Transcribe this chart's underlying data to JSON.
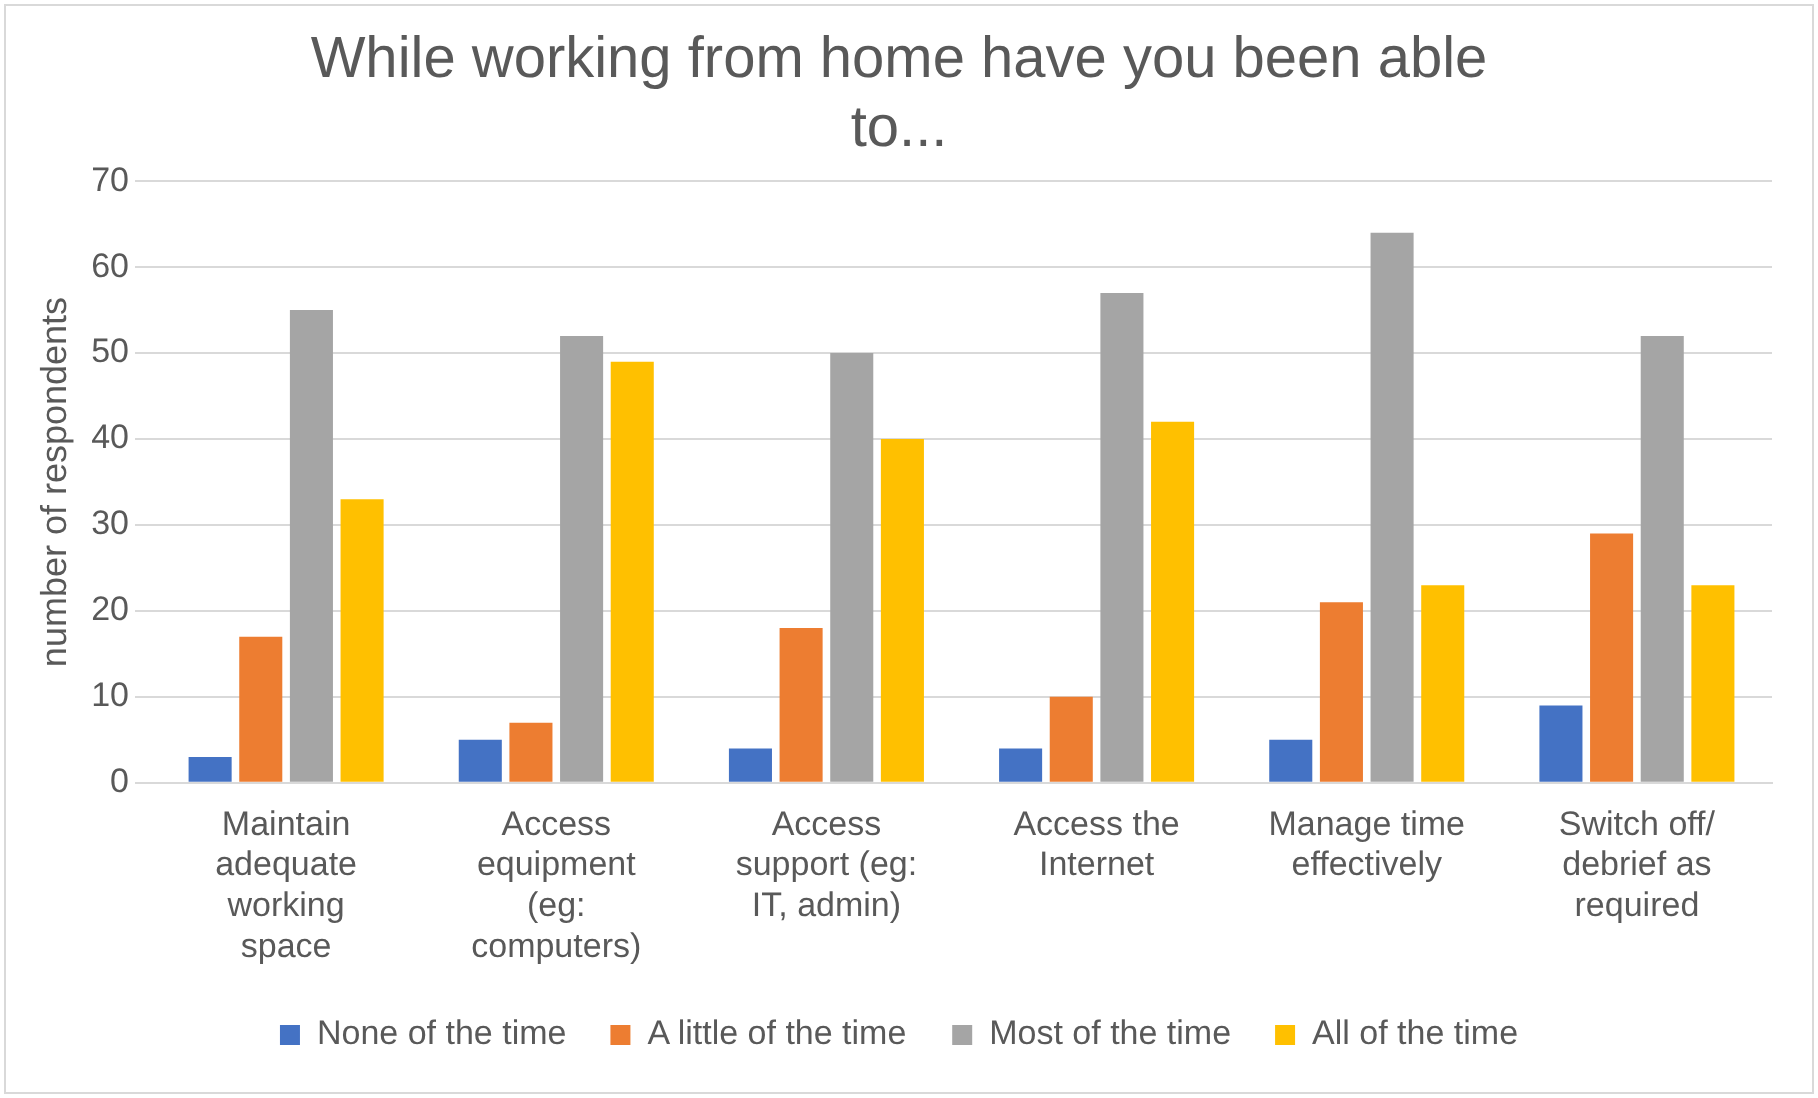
{
  "chart_data": {
    "type": "bar",
    "title": "While working from home have you been able to...",
    "ylabel": "number of respondents",
    "categories": [
      "Maintain adequate working space",
      "Access equipment (eg: computers)",
      "Access support (eg: IT, admin)",
      "Access the Internet",
      "Manage time effectively",
      "Switch off/ debrief as required"
    ],
    "series": [
      {
        "name": "None of the time",
        "color": "#4472c4",
        "values": [
          3,
          5,
          4,
          4,
          5,
          9
        ]
      },
      {
        "name": "A little of the time",
        "color": "#ed7d31",
        "values": [
          17,
          7,
          18,
          10,
          21,
          29
        ]
      },
      {
        "name": "Most of the time",
        "color": "#a5a5a5",
        "values": [
          55,
          52,
          50,
          57,
          64,
          52
        ]
      },
      {
        "name": "All of the time",
        "color": "#ffc000",
        "values": [
          33,
          49,
          40,
          42,
          23,
          23
        ]
      }
    ],
    "ylim": [
      0,
      70
    ],
    "yticks": [
      0,
      10,
      20,
      30,
      40,
      50,
      60,
      70
    ],
    "grid": "y",
    "legend": "bottom"
  }
}
